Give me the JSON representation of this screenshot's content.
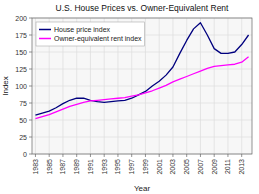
{
  "chart_data": {
    "type": "line",
    "title": "U.S. House Prices vs. Owner-Equivalent Rent",
    "xlabel": "Year",
    "ylabel": "Index",
    "x": [
      1983,
      1984,
      1985,
      1986,
      1987,
      1988,
      1989,
      1990,
      1991,
      1992,
      1993,
      1994,
      1995,
      1996,
      1997,
      1998,
      1999,
      2000,
      2001,
      2002,
      2003,
      2004,
      2005,
      2006,
      2007,
      2008,
      2009,
      2010,
      2011,
      2012,
      2013,
      2014
    ],
    "series": [
      {
        "name": "House price index",
        "color": "#00007f",
        "values": [
          57,
          60,
          63,
          68,
          74,
          79,
          82,
          82,
          79,
          77,
          76,
          77,
          78,
          79,
          82,
          87,
          92,
          100,
          107,
          116,
          128,
          148,
          167,
          184,
          193,
          175,
          155,
          148,
          148,
          150,
          161,
          175
        ]
      },
      {
        "name": "Owner-equivalent rent index",
        "color": "#ff00ff",
        "values": [
          52,
          55,
          58,
          62,
          66,
          70,
          73,
          76,
          78,
          79,
          80,
          81,
          82,
          83,
          85,
          87,
          90,
          93,
          97,
          101,
          106,
          110,
          114,
          118,
          122,
          126,
          129,
          130,
          131,
          132,
          135,
          143
        ]
      }
    ],
    "xlim": [
      1982.5,
      2014.5
    ],
    "xticks": [
      1983,
      1985,
      1987,
      1989,
      1991,
      1993,
      1995,
      1997,
      1999,
      2001,
      2003,
      2005,
      2007,
      2009,
      2011,
      2013
    ],
    "ylim": [
      0,
      200
    ],
    "yticks": [
      0,
      25,
      50,
      75,
      100,
      125,
      150,
      175,
      200
    ],
    "grid": true,
    "legend": "upper left"
  }
}
